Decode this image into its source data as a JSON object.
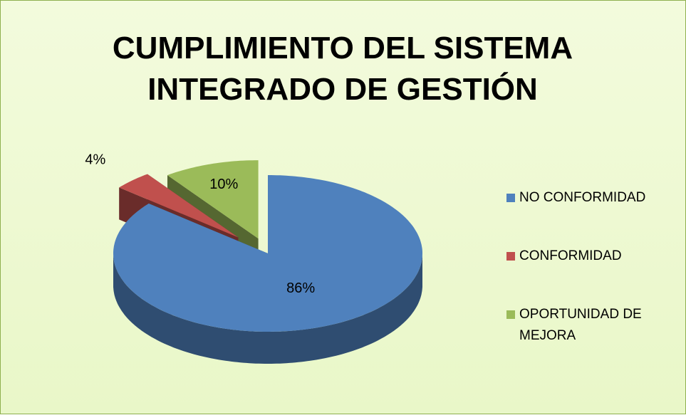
{
  "chart_data": {
    "type": "pie3d",
    "title": "CUMPLIMIENTO DEL SISTEMA INTEGRADO DE GESTIÓN",
    "categories": [
      "NO CONFORMIDAD",
      "CONFORMIDAD",
      "OPORTUNIDAD DE MEJORA"
    ],
    "values": [
      86,
      4,
      10
    ],
    "value_labels": [
      "86%",
      "4%",
      "10%"
    ],
    "colors": [
      "#4f81bd",
      "#c0504d",
      "#9bbb59"
    ],
    "legend": "right"
  }
}
